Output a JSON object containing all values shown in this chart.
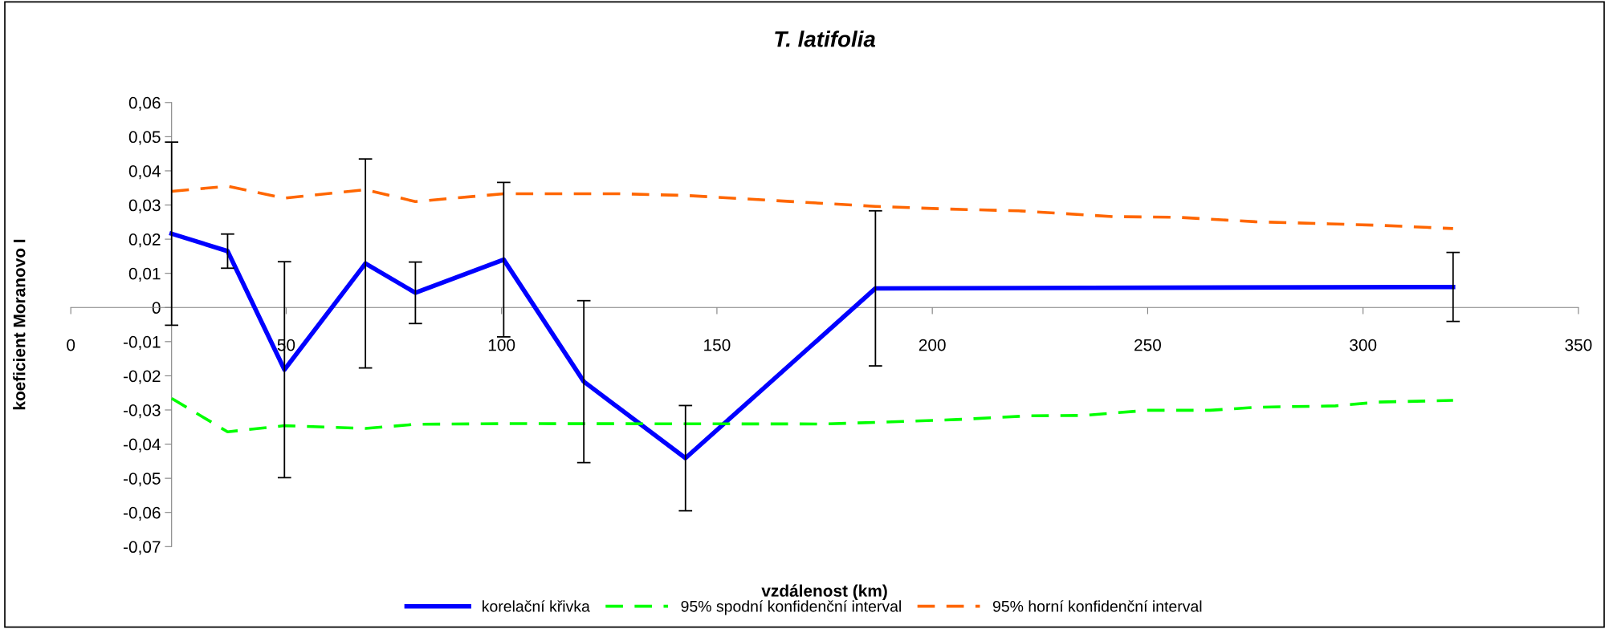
{
  "chart_data": {
    "type": "line",
    "title": "T. latifolia",
    "xlabel": "vzdálenost (km)",
    "ylabel": "koeficient Moranovo I",
    "xlim": [
      0,
      350
    ],
    "xticks": [
      0,
      50,
      100,
      150,
      200,
      250,
      300,
      350
    ],
    "ylim": [
      -0.07,
      0.06
    ],
    "yticks": [
      {
        "value": -0.07,
        "label": "-0,07"
      },
      {
        "value": -0.06,
        "label": "-0,06"
      },
      {
        "value": -0.05,
        "label": "-0,05"
      },
      {
        "value": -0.04,
        "label": "-0,04"
      },
      {
        "value": -0.03,
        "label": "-0,03"
      },
      {
        "value": -0.02,
        "label": "-0,02"
      },
      {
        "value": -0.01,
        "label": "-0,01"
      },
      {
        "value": 0,
        "label": "0"
      },
      {
        "value": 0.01,
        "label": "0,01"
      },
      {
        "value": 0.02,
        "label": "0,02"
      },
      {
        "value": 0.03,
        "label": "0,03"
      },
      {
        "value": 0.04,
        "label": "0,04"
      },
      {
        "value": 0.05,
        "label": "0,05"
      },
      {
        "value": 0.06,
        "label": "0,06"
      }
    ],
    "grid": false,
    "legend": "bottom",
    "marker": "none",
    "series": [
      {
        "name": "korelační křivka",
        "color": "#0000ff",
        "line_style": "solid",
        "x": [
          23.4,
          36.4,
          49.6,
          68.4,
          80.0,
          100.5,
          119.1,
          142.7,
          186.8,
          320.9
        ],
        "values": [
          0.0216,
          0.0165,
          -0.0182,
          0.0129,
          0.0043,
          0.014,
          -0.0217,
          -0.0441,
          0.0056,
          0.006
        ],
        "errors": [
          0.0268,
          0.005,
          0.0316,
          0.0306,
          0.009,
          0.0226,
          0.0237,
          0.0154,
          0.0227,
          0.0101
        ]
      },
      {
        "name": "95% spodní konfidenční interval",
        "color": "#00ff00",
        "line_style": "dashed",
        "x": [
          23.4,
          36.4,
          49.6,
          68.4,
          80.0,
          100.5,
          175.0,
          187.5,
          205.8,
          222.5,
          235.0,
          250.0,
          264.5,
          275.3,
          293.6,
          303.5,
          320.9
        ],
        "values": [
          -0.0266,
          -0.0364,
          -0.0346,
          -0.0354,
          -0.0342,
          -0.034,
          -0.0341,
          -0.0336,
          -0.0328,
          -0.0317,
          -0.0316,
          -0.0301,
          -0.0301,
          -0.0292,
          -0.0288,
          -0.0277,
          -0.0272
        ]
      },
      {
        "name": "95% horní konfidenční interval",
        "color": "#ff6600",
        "line_style": "dashed",
        "x": [
          23.4,
          36.4,
          49.6,
          68.4,
          80.0,
          100.5,
          127.0,
          142.7,
          186.8,
          204.0,
          220.0,
          242.0,
          257.0,
          275.0,
          292.0,
          305.0,
          320.9
        ],
        "values": [
          0.034,
          0.0355,
          0.032,
          0.0345,
          0.031,
          0.0333,
          0.0333,
          0.0328,
          0.0296,
          0.0288,
          0.0283,
          0.0266,
          0.0264,
          0.0251,
          0.0245,
          0.024,
          0.0231
        ]
      }
    ]
  }
}
